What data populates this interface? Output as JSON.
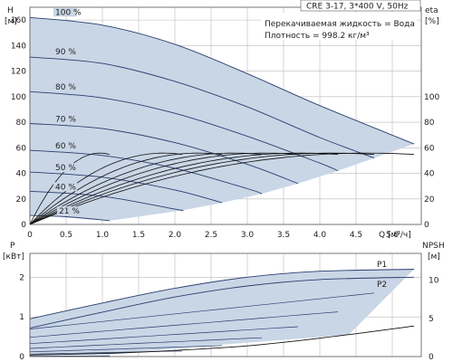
{
  "chart_data": [
    {
      "type": "line",
      "title": "CRE 3-17, 3*400 V, 50Hz",
      "info_lines": [
        "Перекачиваемая жидкость = Вода",
        "Плотность = 998.2 кг/м³"
      ],
      "ylabel_left": [
        "H",
        "[м]"
      ],
      "ylabel_right": [
        "eta",
        "[%]"
      ],
      "xlabel": "Q [м³/ч]",
      "x_ticks": [
        "0",
        "0.5",
        "1.0",
        "1.5",
        "2.0",
        "2.5",
        "3.0",
        "3.5",
        "4.0",
        "4.5",
        "5.0"
      ],
      "y_left_ticks": [
        "0",
        "20",
        "40",
        "60",
        "80",
        "100",
        "120",
        "140",
        "160"
      ],
      "y_right_ticks": [
        "0",
        "20",
        "40",
        "60",
        "80",
        "100"
      ],
      "xlim": [
        0,
        5.4
      ],
      "ylim_left": [
        0,
        170
      ],
      "ylim_right": [
        0,
        170
      ],
      "grid": true,
      "speed_labels": [
        "100 %",
        "90 %",
        "80 %",
        "70 %",
        "60 %",
        "50 %",
        "40 %",
        "21 %"
      ],
      "head_curves": [
        {
          "speed": 1.0,
          "x": [
            0,
            1,
            2,
            3,
            4,
            5.3
          ],
          "y": [
            162,
            156,
            141,
            118,
            93,
            63
          ]
        },
        {
          "speed": 0.9,
          "x": [
            0,
            1,
            2,
            3,
            4,
            4.75
          ],
          "y": [
            131,
            126,
            112,
            92,
            68,
            52
          ]
        },
        {
          "speed": 0.8,
          "x": [
            0,
            1,
            2,
            3,
            4,
            4.25
          ],
          "y": [
            104,
            99,
            87,
            69,
            48,
            42
          ]
        },
        {
          "speed": 0.7,
          "x": [
            0,
            1,
            2,
            3,
            3.7
          ],
          "y": [
            79,
            75,
            64,
            47,
            32
          ]
        },
        {
          "speed": 0.6,
          "x": [
            0,
            1,
            2,
            3,
            3.2
          ],
          "y": [
            58,
            54,
            44,
            28,
            24
          ]
        },
        {
          "speed": 0.5,
          "x": [
            0,
            1,
            2,
            2.65
          ],
          "y": [
            41,
            37,
            27,
            17
          ]
        },
        {
          "speed": 0.4,
          "x": [
            0,
            1,
            2,
            2.1
          ],
          "y": [
            26,
            22,
            12,
            11
          ]
        },
        {
          "speed": 0.21,
          "x": [
            0,
            0.5,
            1.1
          ],
          "y": [
            7,
            6,
            3
          ]
        }
      ],
      "efficiency_max_percent": 57
    },
    {
      "type": "line",
      "ylabel_left": [
        "P",
        "[кВт]"
      ],
      "ylabel_right": [
        "NPSH",
        "[м]"
      ],
      "x_ticks": [
        "0",
        "0.5",
        "1.0",
        "1.5",
        "2.0",
        "2.5",
        "3.0",
        "3.5",
        "4.0",
        "4.5",
        "5.0"
      ],
      "y_left_ticks": [
        "0",
        "1",
        "2"
      ],
      "y_right_ticks": [
        "0",
        "5",
        "10"
      ],
      "xlim": [
        0,
        5.4
      ],
      "ylim_left": [
        0,
        2.6
      ],
      "ylim_right": [
        0,
        13.5
      ],
      "grid": true,
      "series_labels": [
        "P1",
        "P2"
      ],
      "power_p1": {
        "x": [
          0,
          1,
          2,
          3,
          4,
          5.3
        ],
        "y": [
          0.95,
          1.35,
          1.72,
          2.0,
          2.15,
          2.2
        ]
      },
      "power_p2": {
        "x": [
          0,
          1,
          2,
          3,
          4,
          5.3
        ],
        "y": [
          0.72,
          1.12,
          1.5,
          1.78,
          1.94,
          2.0
        ]
      },
      "npsh": {
        "x": [
          0,
          1,
          2,
          3,
          4,
          5.3
        ],
        "y": [
          0.2,
          0.4,
          0.8,
          1.4,
          2.4,
          4.0
        ]
      }
    }
  ]
}
